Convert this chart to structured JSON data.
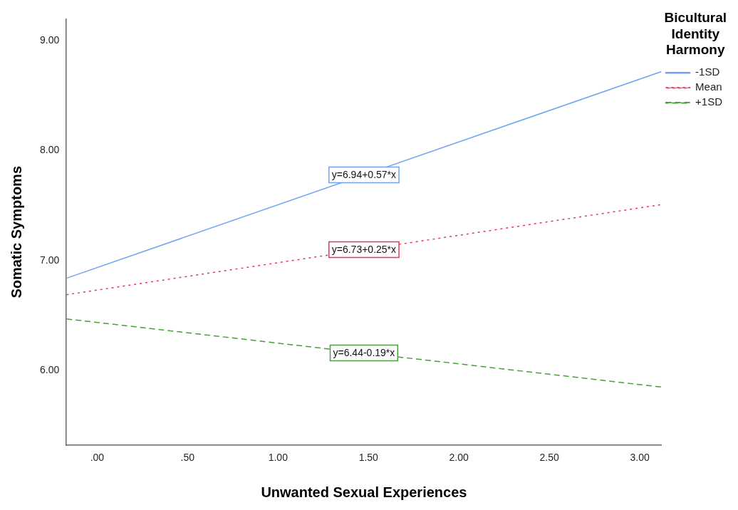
{
  "chart_data": {
    "type": "line",
    "xlabel": "Unwanted Sexual Experiences",
    "ylabel": "Somatic Symptoms",
    "legend_title": "Bicultural Identity Harmony",
    "legend": "top right",
    "grid": false,
    "marker": "none",
    "xlim": [
      -0.17,
      3.12
    ],
    "xticks": [
      {
        "value": 0,
        "label": ".00"
      },
      {
        "value": 0.5,
        "label": ".50"
      },
      {
        "value": 1,
        "label": "1.00"
      },
      {
        "value": 1.5,
        "label": "1.50"
      },
      {
        "value": 2,
        "label": "2.00"
      },
      {
        "value": 2.5,
        "label": "2.50"
      },
      {
        "value": 3,
        "label": "3.00"
      }
    ],
    "ylim": [
      5.32,
      9.2
    ],
    "yticks": [
      {
        "value": 6,
        "label": "6.00"
      },
      {
        "value": 7,
        "label": "7.00"
      },
      {
        "value": 8,
        "label": "8.00"
      },
      {
        "value": 9,
        "label": "9.00"
      }
    ],
    "x": [
      -0.17,
      3.12
    ],
    "series": [
      {
        "name": "-1SD",
        "color": "#6fa3ef",
        "line_style": "solid",
        "values": [
          6.84,
          8.72
        ]
      },
      {
        "name": "Mean",
        "color": "#e8375a",
        "line_style": "dotted",
        "values": [
          6.69,
          7.51
        ]
      },
      {
        "name": "+1SD",
        "color": "#4a9e3c",
        "line_style": "dashed",
        "values": [
          6.47,
          5.85
        ]
      }
    ],
    "annotations": [
      "y=6.94+0.57*x",
      "y=6.73+0.25*x",
      "y=6.44-0.19*x"
    ]
  }
}
